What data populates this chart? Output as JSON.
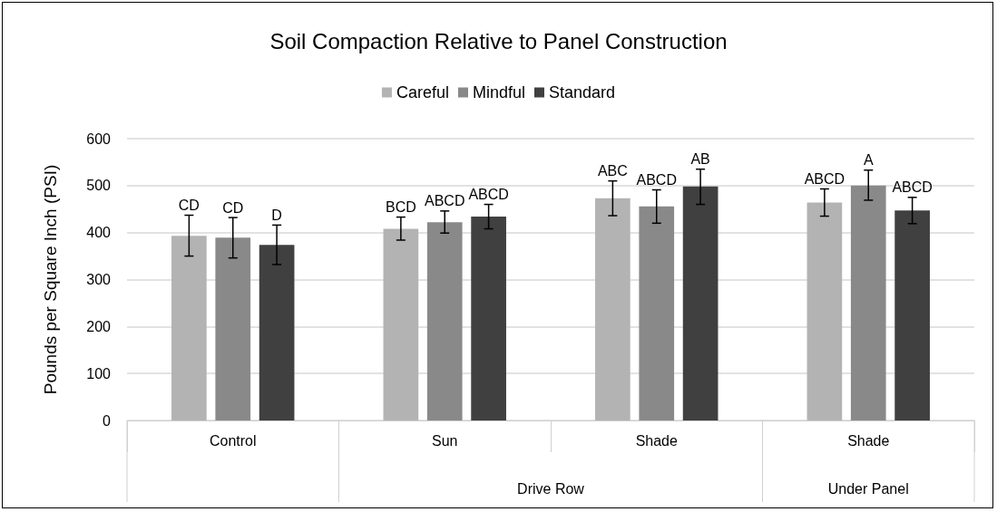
{
  "chart_data": {
    "type": "bar",
    "title": "Soil Compaction Relative to Panel Construction",
    "ylabel": "Pounds per Square Inch (PSI)",
    "categories": [
      "Control",
      "Sun",
      "Shade",
      "Shade"
    ],
    "annotations": [
      "Drive Row",
      "Under Panel"
    ],
    "series": [
      {
        "name": "Careful",
        "color": "#b3b3b3",
        "values": [
          393,
          408,
          473,
          464
        ],
        "errors": [
          [
            350,
            437
          ],
          [
            384,
            433
          ],
          [
            436,
            510
          ],
          [
            435,
            493
          ]
        ],
        "value_labels": [
          "CD",
          "BCD",
          "ABC",
          "ABCD"
        ]
      },
      {
        "name": "Mindful",
        "color": "#898989",
        "values": [
          389,
          422,
          456,
          500
        ],
        "errors": [
          [
            346,
            432
          ],
          [
            399,
            446
          ],
          [
            420,
            491
          ],
          [
            469,
            533
          ]
        ],
        "value_labels": [
          "CD",
          "ABCD",
          "ABCD",
          "A"
        ]
      },
      {
        "name": "Standard",
        "color": "#404040",
        "values": [
          374,
          434,
          498,
          447
        ],
        "errors": [
          [
            332,
            416
          ],
          [
            408,
            460
          ],
          [
            460,
            535
          ],
          [
            419,
            475
          ]
        ],
        "value_labels": [
          "D",
          "ABCD",
          "AB",
          "ABCD"
        ]
      }
    ],
    "ylim": [
      0,
      600
    ],
    "yticks": [
      0,
      100,
      200,
      300,
      400,
      500,
      600
    ],
    "grid": "y",
    "legend": "top"
  }
}
